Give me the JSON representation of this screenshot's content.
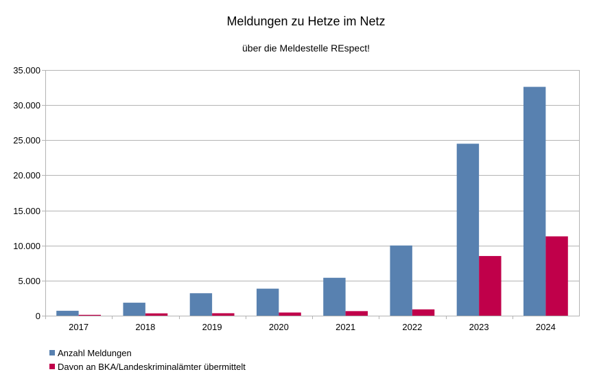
{
  "chart_data": {
    "type": "bar",
    "title": "Meldungen zu Hetze im Netz",
    "subtitle": "über die Meldestelle REspect!",
    "categories": [
      "2017",
      "2018",
      "2019",
      "2020",
      "2021",
      "2022",
      "2023",
      "2024"
    ],
    "series": [
      {
        "name": "Anzahl Meldungen",
        "color": "#5881b0",
        "values": [
          700,
          1850,
          3200,
          3850,
          5400,
          10000,
          24500,
          32600
        ]
      },
      {
        "name": "Davon an BKA/Landeskriminalämter übermittelt",
        "color": "#c0004a",
        "values": [
          120,
          330,
          350,
          450,
          650,
          900,
          8500,
          11300
        ]
      }
    ],
    "ylim": [
      0,
      35000
    ],
    "yticks": [
      0,
      5000,
      10000,
      15000,
      20000,
      25000,
      30000,
      35000
    ],
    "ytick_labels": [
      "0",
      "5.000",
      "10.000",
      "15.000",
      "20.000",
      "25.000",
      "30.000",
      "35.000"
    ],
    "grid": true,
    "legend_position": "bottom-left"
  }
}
